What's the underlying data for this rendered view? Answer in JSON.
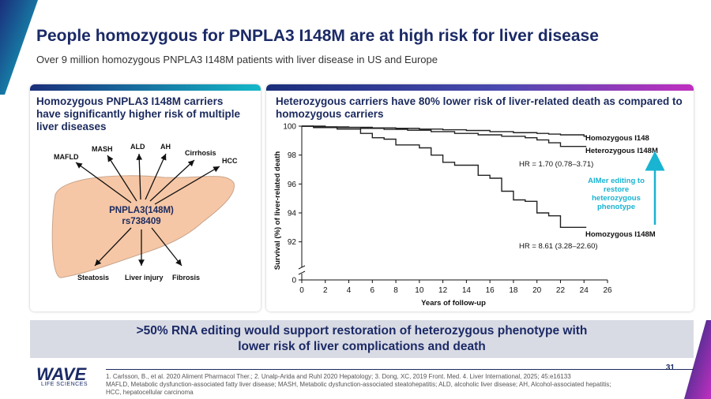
{
  "header": {
    "title": "People homozygous for PNPLA3 I148M are at high risk for liver disease",
    "subtitle": "Over 9 million homozygous PNPLA3 I148M patients with liver disease in US and Europe"
  },
  "left_panel": {
    "title": "Homozygous PNPLA3 I148M carriers have significantly higher risk of multiple liver diseases",
    "center_label_line1": "PNPLA3(148M)",
    "center_label_line2": "rs738409",
    "diseases_top": [
      "MAFLD",
      "MASH",
      "ALD",
      "AH",
      "Cirrhosis",
      "HCC"
    ],
    "outcomes_bottom": [
      "Steatosis",
      "Liver injury",
      "Fibrosis"
    ]
  },
  "right_panel": {
    "title": "Heterozygous carriers have 80% lower risk of liver-related death as compared to homozygous carriers",
    "hr_heterozygous": "HR = 1.70 (0.78–3.71)",
    "hr_homozygous": "HR = 8.61 (3.28–22.60)",
    "editing_note_line1": "AIMer editing to",
    "editing_note_line2": "restore",
    "editing_note_line3": "heterozygous",
    "editing_note_line4": "phenotype"
  },
  "chart_data": {
    "type": "line",
    "title": "",
    "xlabel": "Years of follow-up",
    "ylabel": "Survival (%) of liver-related death",
    "x_ticks": [
      0,
      2,
      4,
      6,
      8,
      10,
      12,
      14,
      16,
      18,
      20,
      22,
      24,
      26
    ],
    "y_ticks": [
      0,
      92,
      94,
      96,
      98,
      100
    ],
    "xlim": [
      0,
      26
    ],
    "ylim": [
      91,
      100
    ],
    "y_axis_break": true,
    "series": [
      {
        "name": "Homozygous I148",
        "color": "#222222",
        "points": [
          [
            0,
            100
          ],
          [
            2,
            99.95
          ],
          [
            4,
            99.92
          ],
          [
            6,
            99.88
          ],
          [
            8,
            99.85
          ],
          [
            10,
            99.8
          ],
          [
            12,
            99.75
          ],
          [
            14,
            99.7
          ],
          [
            16,
            99.62
          ],
          [
            18,
            99.55
          ],
          [
            20,
            99.5
          ],
          [
            21,
            99.45
          ],
          [
            22,
            99.4
          ],
          [
            24,
            99.3
          ],
          [
            24.2,
            99.28
          ]
        ]
      },
      {
        "name": "Heterozygous I148M",
        "color": "#222222",
        "points": [
          [
            0,
            100
          ],
          [
            1,
            99.95
          ],
          [
            3,
            99.9
          ],
          [
            5,
            99.85
          ],
          [
            7,
            99.78
          ],
          [
            9,
            99.72
          ],
          [
            11,
            99.62
          ],
          [
            13,
            99.5
          ],
          [
            15,
            99.4
          ],
          [
            17,
            99.3
          ],
          [
            19,
            99.2
          ],
          [
            20,
            99.05
          ],
          [
            21,
            98.85
          ],
          [
            22,
            98.6
          ],
          [
            24.2,
            98.6
          ]
        ]
      },
      {
        "name": "Homozygous I148M",
        "color": "#222222",
        "points": [
          [
            0,
            100
          ],
          [
            1,
            99.9
          ],
          [
            3,
            99.8
          ],
          [
            5,
            99.5
          ],
          [
            6,
            99.2
          ],
          [
            7,
            99.1
          ],
          [
            8,
            98.7
          ],
          [
            10,
            98.5
          ],
          [
            11,
            98.0
          ],
          [
            12,
            97.5
          ],
          [
            13,
            97.3
          ],
          [
            14,
            97.3
          ],
          [
            15,
            96.6
          ],
          [
            16,
            96.4
          ],
          [
            17,
            95.5
          ],
          [
            18,
            94.9
          ],
          [
            19,
            94.8
          ],
          [
            20,
            94.0
          ],
          [
            21,
            93.8
          ],
          [
            22,
            93.0
          ],
          [
            24.2,
            93.0
          ]
        ]
      }
    ]
  },
  "banner": {
    "line1": ">50% RNA editing would support restoration of heterozygous phenotype with",
    "line2": "lower risk of liver complications and death"
  },
  "footer": {
    "page_number": "31",
    "logo_text": "WAVE",
    "logo_sub": "LIFE SCIENCES",
    "ref_line1": "1. Carlsson, B., et al. 2020 Aliment Pharmacol Ther.; 2. Unalp-Arida and Ruhl 2020 Hepatology; 3. Dong, XC, 2019 Front. Med. 4. Liver International, 2025; 45:e16133",
    "ref_line2": "MAFLD, Metabolic dysfunction-associated fatty liver disease; MASH, Metabolic dysfunction-associated steatohepatitis; ALD, alcoholic liver disease; AH, Alcohol-associated hepatitis;",
    "ref_line3": "HCC, hepatocellular carcinoma"
  },
  "colors": {
    "navy": "#1b2a66",
    "teal": "#14b8c8",
    "liver": "#f6c7a6",
    "arrow_teal": "#18b4d2"
  }
}
